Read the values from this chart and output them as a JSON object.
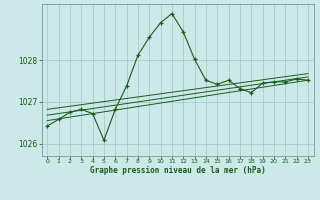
{
  "title": "Graphe pression niveau de la mer (hPa)",
  "background_color": "#cce8e8",
  "grid_color": "#aacccc",
  "line_color": "#1a5c1a",
  "xlim": [
    -0.5,
    23.5
  ],
  "ylim": [
    1025.7,
    1029.35
  ],
  "yticks": [
    1026,
    1027,
    1028
  ],
  "xticks": [
    0,
    1,
    2,
    3,
    4,
    5,
    6,
    7,
    8,
    9,
    10,
    11,
    12,
    13,
    14,
    15,
    16,
    17,
    18,
    19,
    20,
    21,
    22,
    23
  ],
  "main_x": [
    0,
    1,
    2,
    3,
    4,
    5,
    6,
    7,
    8,
    9,
    10,
    11,
    12,
    13,
    14,
    15,
    16,
    17,
    18,
    19,
    20,
    21,
    22,
    23
  ],
  "main_y": [
    1026.42,
    1026.58,
    1026.75,
    1026.82,
    1026.72,
    1026.08,
    1026.82,
    1027.38,
    1028.12,
    1028.55,
    1028.9,
    1029.12,
    1028.68,
    1028.02,
    1027.52,
    1027.42,
    1027.52,
    1027.32,
    1027.22,
    1027.45,
    1027.48,
    1027.48,
    1027.55,
    1027.52
  ],
  "trend1_x": [
    0,
    23
  ],
  "trend1_y": [
    1026.55,
    1027.52
  ],
  "trend2_x": [
    0,
    23
  ],
  "trend2_y": [
    1026.68,
    1027.6
  ],
  "trend3_x": [
    0,
    23
  ],
  "trend3_y": [
    1026.82,
    1027.68
  ]
}
